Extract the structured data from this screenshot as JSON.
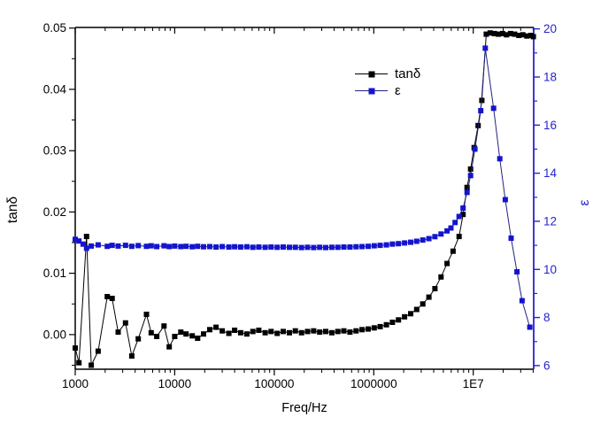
{
  "chart_data": {
    "type": "line",
    "title": "",
    "xlabel": "Freq/Hz",
    "x_scale": "log",
    "grid": false,
    "x_range": [
      1000,
      40500000
    ],
    "x_major_ticks": {
      "values": [
        1000,
        10000,
        100000,
        1000000,
        10000000
      ],
      "labels": [
        "1000",
        "10000",
        "100000",
        "1000000",
        "1E7"
      ]
    },
    "y_left": {
      "label": "tanδ",
      "color": "#000000",
      "range": [
        -0.00565,
        0.0501
      ],
      "major_ticks": [
        0,
        0.01,
        0.02,
        0.03,
        0.04,
        0.05
      ],
      "tick_labels": [
        "0.00",
        "0.01",
        "0.02",
        "0.03",
        "0.04",
        "0.05"
      ],
      "minor_ticks": [
        -0.005,
        0.005,
        0.015,
        0.025,
        0.035,
        0.045
      ]
    },
    "y_right": {
      "label": "ε",
      "color": "#2424cb",
      "range": [
        5.85,
        20.06
      ],
      "major_ticks": [
        6,
        8,
        10,
        12,
        14,
        16,
        18,
        20
      ],
      "tick_labels": [
        "6",
        "8",
        "10",
        "12",
        "14",
        "16",
        "18",
        "20"
      ],
      "minor_ticks": [
        7,
        9,
        11,
        13,
        15,
        17,
        19
      ]
    },
    "legend": {
      "position": "inside-top-center",
      "items": [
        {
          "label": "tanδ"
        },
        {
          "label": "ε"
        }
      ]
    },
    "series": [
      {
        "id": "tand",
        "name": "tanδ",
        "axis": "left",
        "marker": "square",
        "marker_color": "#000000",
        "line_color": "#000000",
        "points": [
          [
            1000,
            -0.0022
          ],
          [
            1090,
            -0.0046
          ],
          [
            1300,
            0.016
          ],
          [
            1450,
            -0.005
          ],
          [
            1700,
            -0.0027
          ],
          [
            2100,
            0.0062
          ],
          [
            2350,
            0.0059
          ],
          [
            2700,
            0.0004
          ],
          [
            3200,
            0.0019
          ],
          [
            3700,
            -0.0035
          ],
          [
            4300,
            -0.0007
          ],
          [
            5200,
            0.0033
          ],
          [
            5800,
            0.0003
          ],
          [
            6600,
            -0.0003
          ],
          [
            7800,
            0.0014
          ],
          [
            8800,
            -0.002
          ],
          [
            10000,
            -0.0003
          ],
          [
            11500,
            0.0004
          ],
          [
            13000,
            0.0001
          ],
          [
            15000,
            -0.0002
          ],
          [
            17000,
            -0.0006
          ],
          [
            19500,
            0.0001
          ],
          [
            22500,
            0.0008
          ],
          [
            26000,
            0.0012
          ],
          [
            30000,
            0.0006
          ],
          [
            35000,
            0.0002
          ],
          [
            40000,
            0.0007
          ],
          [
            46000,
            0.0003
          ],
          [
            53000,
            0.0001
          ],
          [
            61000,
            0.0005
          ],
          [
            70000,
            0.0007
          ],
          [
            81000,
            0.0003
          ],
          [
            93000,
            0.0005
          ],
          [
            107000,
            0.0002
          ],
          [
            123000,
            0.0005
          ],
          [
            142000,
            0.0003
          ],
          [
            163000,
            0.0006
          ],
          [
            188000,
            0.0003
          ],
          [
            216000,
            0.0005
          ],
          [
            249000,
            0.0006
          ],
          [
            286000,
            0.0004
          ],
          [
            329000,
            0.0005
          ],
          [
            379000,
            0.0003
          ],
          [
            436000,
            0.0005
          ],
          [
            501000,
            0.0006
          ],
          [
            577000,
            0.0004
          ],
          [
            664000,
            0.0006
          ],
          [
            764000,
            0.0008
          ],
          [
            879000,
            0.0009
          ],
          [
            1010000,
            0.0011
          ],
          [
            1160000,
            0.0013
          ],
          [
            1340000,
            0.0016
          ],
          [
            1540000,
            0.002
          ],
          [
            1770000,
            0.0024
          ],
          [
            2040000,
            0.0029
          ],
          [
            2350000,
            0.0034
          ],
          [
            2700000,
            0.0041
          ],
          [
            3110000,
            0.005
          ],
          [
            3580000,
            0.0061
          ],
          [
            4120000,
            0.0075
          ],
          [
            4740000,
            0.0094
          ],
          [
            5450000,
            0.0116
          ],
          [
            6270000,
            0.0136
          ],
          [
            7210000,
            0.016
          ],
          [
            7900000,
            0.0196
          ],
          [
            8660000,
            0.024
          ],
          [
            9400000,
            0.027
          ],
          [
            10200000,
            0.0305
          ],
          [
            11200000,
            0.0341
          ],
          [
            12200000,
            0.0382
          ],
          [
            13500000,
            0.049
          ],
          [
            14800000,
            0.0492
          ],
          [
            16300000,
            0.0491
          ],
          [
            17900000,
            0.049
          ],
          [
            19700000,
            0.0491
          ],
          [
            21600000,
            0.0489
          ],
          [
            23700000,
            0.0491
          ],
          [
            26100000,
            0.049
          ],
          [
            28700000,
            0.0488
          ],
          [
            31500000,
            0.0489
          ],
          [
            34600000,
            0.0487
          ],
          [
            38000000,
            0.0488
          ],
          [
            40200000,
            0.0486
          ]
        ]
      },
      {
        "id": "epsilon",
        "name": "ε",
        "axis": "right",
        "marker": "square",
        "marker_color": "#1414cf",
        "line_color": "#23237e",
        "points": [
          [
            1000,
            11.25
          ],
          [
            1090,
            11.18
          ],
          [
            1200,
            11.05
          ],
          [
            1300,
            10.88
          ],
          [
            1450,
            10.97
          ],
          [
            1700,
            11.02
          ],
          [
            2100,
            10.96
          ],
          [
            2350,
            11.0
          ],
          [
            2700,
            10.97
          ],
          [
            3200,
            11.0
          ],
          [
            3700,
            10.96
          ],
          [
            4300,
            10.99
          ],
          [
            5200,
            10.96
          ],
          [
            5800,
            10.98
          ],
          [
            6600,
            10.95
          ],
          [
            7800,
            10.98
          ],
          [
            8800,
            10.95
          ],
          [
            10000,
            10.97
          ],
          [
            11500,
            10.95
          ],
          [
            13000,
            10.96
          ],
          [
            15000,
            10.94
          ],
          [
            17000,
            10.96
          ],
          [
            19500,
            10.94
          ],
          [
            22500,
            10.95
          ],
          [
            26000,
            10.93
          ],
          [
            30000,
            10.95
          ],
          [
            35000,
            10.93
          ],
          [
            40000,
            10.94
          ],
          [
            46000,
            10.93
          ],
          [
            53000,
            10.94
          ],
          [
            61000,
            10.92
          ],
          [
            70000,
            10.93
          ],
          [
            81000,
            10.92
          ],
          [
            93000,
            10.93
          ],
          [
            107000,
            10.92
          ],
          [
            123000,
            10.93
          ],
          [
            142000,
            10.92
          ],
          [
            163000,
            10.92
          ],
          [
            188000,
            10.91
          ],
          [
            216000,
            10.92
          ],
          [
            249000,
            10.91
          ],
          [
            286000,
            10.92
          ],
          [
            329000,
            10.91
          ],
          [
            379000,
            10.92
          ],
          [
            436000,
            10.92
          ],
          [
            501000,
            10.93
          ],
          [
            577000,
            10.93
          ],
          [
            664000,
            10.94
          ],
          [
            764000,
            10.95
          ],
          [
            879000,
            10.96
          ],
          [
            1010000,
            10.98
          ],
          [
            1160000,
            11.0
          ],
          [
            1340000,
            11.02
          ],
          [
            1540000,
            11.05
          ],
          [
            1770000,
            11.07
          ],
          [
            2040000,
            11.1
          ],
          [
            2350000,
            11.13
          ],
          [
            2700000,
            11.17
          ],
          [
            3110000,
            11.22
          ],
          [
            3580000,
            11.28
          ],
          [
            4120000,
            11.36
          ],
          [
            4740000,
            11.47
          ],
          [
            5450000,
            11.6
          ],
          [
            5970000,
            11.72
          ],
          [
            6570000,
            11.95
          ],
          [
            7210000,
            12.2
          ],
          [
            7900000,
            12.55
          ],
          [
            8660000,
            13.2
          ],
          [
            9400000,
            13.9
          ],
          [
            10400000,
            15.0
          ],
          [
            11900000,
            16.6
          ],
          [
            13200000,
            19.2
          ],
          [
            16000000,
            16.7
          ],
          [
            18500000,
            14.6
          ],
          [
            21000000,
            12.9
          ],
          [
            24000000,
            11.3
          ],
          [
            27500000,
            9.9
          ],
          [
            31000000,
            8.7
          ],
          [
            37000000,
            7.6
          ]
        ]
      }
    ]
  }
}
